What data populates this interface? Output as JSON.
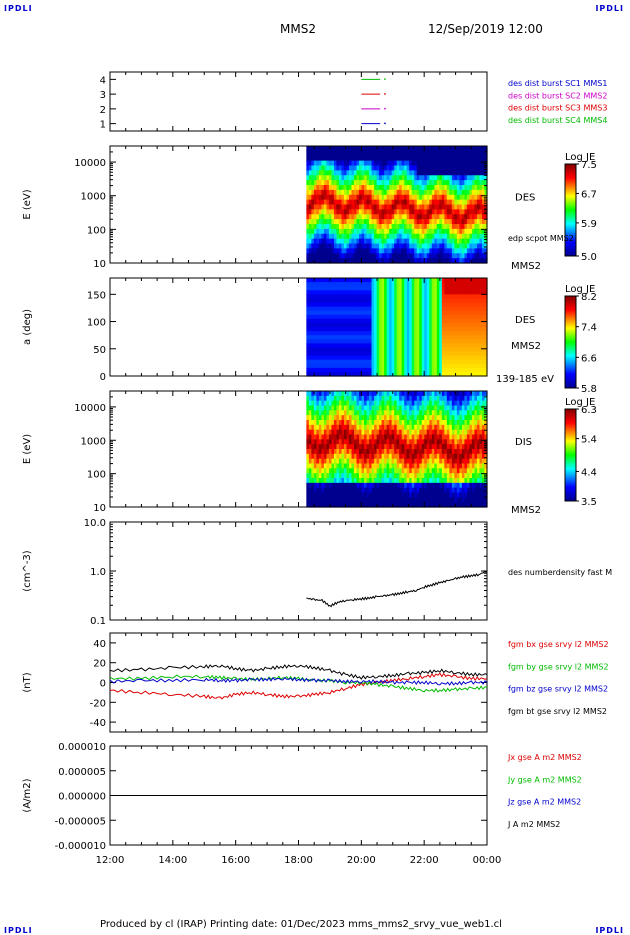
{
  "header": {
    "corner_label": "IPDLI",
    "spacecraft": "MMS2",
    "datetime": "12/Sep/2019 12:00"
  },
  "footer": {
    "text": "Produced by cl (IRAP)   Printing date: 01/Dec/2023   mms_mms2_srvy_vue_web1.cl"
  },
  "colors": {
    "mms1": "#0000cc",
    "mms2": "#cc00cc",
    "mms3": "#dd0000",
    "mms4": "#00bb00",
    "bx": "#dd0000",
    "by": "#00bb00",
    "bz": "#0000cc",
    "bt": "#000000"
  },
  "chart_data": [
    {
      "id": "burst",
      "type": "line",
      "yticks": [
        "1",
        "2",
        "3",
        "4"
      ],
      "legend": [
        {
          "label": "des dist burst SC1 MMS1",
          "color": "#0000cc"
        },
        {
          "label": "des dist burst SC2 MMS2",
          "color": "#cc00cc"
        },
        {
          "label": "des dist burst SC3 MMS3",
          "color": "#dd0000"
        },
        {
          "label": "des dist burst SC4 MMS4",
          "color": "#00bb00"
        }
      ],
      "series": [
        {
          "name": "des dist burst SC1 MMS1",
          "level": 1,
          "x": [
            20.0,
            20.6
          ],
          "color": "#0000cc"
        },
        {
          "name": "des dist burst SC2 MMS2",
          "level": 2,
          "x": [
            20.0,
            20.6
          ],
          "color": "#cc00cc"
        },
        {
          "name": "des dist burst SC3 MMS3",
          "level": 3,
          "x": [
            20.0,
            20.6
          ],
          "color": "#dd0000"
        },
        {
          "name": "des dist burst SC4 MMS4",
          "level": 4,
          "x": [
            20.0,
            20.6
          ],
          "color": "#00bb00"
        }
      ]
    },
    {
      "id": "des_energy",
      "type": "heatmap",
      "ylabel": "E (eV)",
      "yscale": "log",
      "ylim": [
        10,
        30000
      ],
      "yticks": [
        "10",
        "100",
        "1000",
        "10000"
      ],
      "data_start_hour": 18.25,
      "label": "DES",
      "sublabel": "edp scpot MMS2",
      "corner_label": "MMS2",
      "colorbar": {
        "title": "Log JE",
        "ticks": [
          "5.0",
          "5.9",
          "6.7",
          "7.5"
        ],
        "range": [
          5.0,
          7.5
        ]
      }
    },
    {
      "id": "des_pitch",
      "type": "heatmap",
      "ylabel": "a (deg)",
      "ylim": [
        0,
        180
      ],
      "yticks": [
        "0",
        "50",
        "100",
        "150"
      ],
      "data_start_hour": 18.25,
      "label": "DES",
      "sublabel": "MMS2",
      "corner_label": "139-185 eV",
      "colorbar": {
        "title": "Log JE",
        "ticks": [
          "5.8",
          "6.6",
          "7.4",
          "8.2"
        ],
        "range": [
          5.8,
          8.2
        ]
      }
    },
    {
      "id": "dis_energy",
      "type": "heatmap",
      "ylabel": "E (eV)",
      "yscale": "log",
      "ylim": [
        10,
        30000
      ],
      "yticks": [
        "10",
        "100",
        "1000",
        "10000"
      ],
      "data_start_hour": 18.25,
      "label": "DIS",
      "corner_label": "MMS2",
      "colorbar": {
        "title": "Log JE",
        "ticks": [
          "3.5",
          "4.4",
          "5.4",
          "6.3"
        ],
        "range": [
          3.5,
          6.3
        ]
      }
    },
    {
      "id": "density",
      "type": "line",
      "ylabel": "(cm^-3)",
      "yscale": "log",
      "ylim": [
        0.1,
        10
      ],
      "yticks": [
        "0.1",
        "1.0",
        "10.0"
      ],
      "legend": [
        {
          "label": "des numberdensity fast M",
          "color": "#000000"
        }
      ],
      "series": [
        {
          "name": "des numberdensity fast M",
          "color": "#000000",
          "x": [
            18.25,
            18.5,
            18.75,
            19.0,
            19.25,
            19.5,
            19.75,
            20.0,
            20.25,
            20.5,
            20.75,
            21.0,
            21.25,
            21.5,
            21.75,
            22.0,
            22.25,
            22.5,
            22.75,
            23.0,
            23.25,
            23.5,
            23.75,
            24.0
          ],
          "y": [
            0.28,
            0.26,
            0.25,
            0.19,
            0.23,
            0.25,
            0.26,
            0.27,
            0.28,
            0.3,
            0.31,
            0.33,
            0.35,
            0.38,
            0.4,
            0.47,
            0.52,
            0.58,
            0.63,
            0.7,
            0.76,
            0.8,
            0.85,
            1.0
          ]
        }
      ]
    },
    {
      "id": "magnetic",
      "type": "line",
      "ylabel": "(nT)",
      "ylim": [
        -50,
        50
      ],
      "yticks": [
        "-40",
        "-20",
        "0",
        "20",
        "40"
      ],
      "legend": [
        {
          "label": "fgm bx gse srvy l2 MMS2",
          "color": "#dd0000"
        },
        {
          "label": "fgm by gse srvy l2 MMS2",
          "color": "#00bb00"
        },
        {
          "label": "fgm bz gse srvy l2 MMS2",
          "color": "#0000cc"
        },
        {
          "label": "fgm bt gse srvy l2 MMS2",
          "color": "#000000"
        }
      ],
      "x": [
        12,
        13,
        14,
        15,
        15.5,
        16,
        16.5,
        17,
        17.5,
        18,
        18.5,
        19,
        19.5,
        20,
        20.5,
        21,
        21.5,
        22,
        22.5,
        23,
        23.5,
        24
      ],
      "series": [
        {
          "name": "fgm bx gse srvy l2 MMS2",
          "color": "#dd0000",
          "y": [
            -8,
            -10,
            -12,
            -14,
            -16,
            -12,
            -10,
            -12,
            -14,
            -14,
            -12,
            -10,
            -6,
            -2,
            0,
            2,
            4,
            6,
            8,
            6,
            4,
            4
          ]
        },
        {
          "name": "fgm by gse srvy l2 MMS2",
          "color": "#00bb00",
          "y": [
            4,
            4,
            6,
            6,
            5,
            4,
            3,
            4,
            5,
            4,
            2,
            2,
            0,
            0,
            -2,
            -4,
            -6,
            -8,
            -8,
            -7,
            -6,
            -5
          ]
        },
        {
          "name": "fgm bz gse srvy l2 MMS2",
          "color": "#0000cc",
          "y": [
            1,
            2,
            2,
            3,
            2,
            2,
            3,
            3,
            4,
            3,
            2,
            2,
            1,
            1,
            1,
            0,
            0,
            0,
            -1,
            -1,
            0,
            0
          ]
        },
        {
          "name": "fgm bt gse srvy l2 MMS2",
          "color": "#000000",
          "y": [
            12,
            13,
            15,
            16,
            17,
            14,
            12,
            14,
            16,
            17,
            15,
            12,
            8,
            5,
            6,
            7,
            9,
            10,
            12,
            10,
            8,
            8
          ]
        }
      ]
    },
    {
      "id": "current",
      "type": "line",
      "ylabel": "(A/m2)",
      "ylim": [
        -1e-05,
        1e-05
      ],
      "yticks": [
        "-0.000010",
        "-0.000005",
        "0.000000",
        "0.000005",
        "0.000010"
      ],
      "legend": [
        {
          "label": "Jx gse A m2 MMS2",
          "color": "#dd0000"
        },
        {
          "label": "Jy gse A m2 MMS2",
          "color": "#00bb00"
        },
        {
          "label": "Jz gse A m2 MMS2",
          "color": "#0000cc"
        },
        {
          "label": "J A m2 MMS2",
          "color": "#000000"
        }
      ],
      "series": [
        {
          "name": "J A m2 MMS2",
          "color": "#000000",
          "x": [
            12,
            24
          ],
          "y": [
            0,
            0
          ]
        }
      ]
    }
  ],
  "xaxis": {
    "range": [
      12,
      24
    ],
    "ticks": [
      {
        "v": 12,
        "label": "12:00"
      },
      {
        "v": 14,
        "label": "14:00"
      },
      {
        "v": 16,
        "label": "16:00"
      },
      {
        "v": 18,
        "label": "18:00"
      },
      {
        "v": 20,
        "label": "20:00"
      },
      {
        "v": 22,
        "label": "22:00"
      },
      {
        "v": 24,
        "label": "00:00"
      }
    ]
  }
}
